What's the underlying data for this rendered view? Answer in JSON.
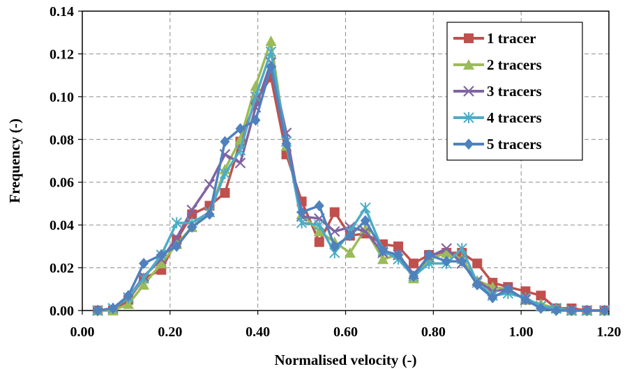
{
  "chart_data": {
    "type": "line",
    "xlabel": "Normalised velocity (-)",
    "ylabel": "Frequency (-)",
    "xlim": [
      0.0,
      1.2
    ],
    "ylim": [
      0.0,
      0.14
    ],
    "x_ticks": [
      "0.00",
      "0.20",
      "0.40",
      "0.60",
      "0.80",
      "1.00",
      "1.20"
    ],
    "y_ticks": [
      "0.00",
      "0.02",
      "0.04",
      "0.06",
      "0.08",
      "0.10",
      "0.12",
      "0.14"
    ],
    "grid": true,
    "legend_position": "top-right",
    "series": [
      {
        "name": "1 tracer",
        "color": "#c0504d",
        "marker": "square",
        "x": [
          0.035,
          0.07,
          0.105,
          0.14,
          0.18,
          0.215,
          0.25,
          0.29,
          0.325,
          0.36,
          0.395,
          0.43,
          0.465,
          0.5,
          0.54,
          0.575,
          0.61,
          0.645,
          0.685,
          0.72,
          0.755,
          0.79,
          0.83,
          0.865,
          0.9,
          0.935,
          0.97,
          1.01,
          1.045,
          1.08,
          1.115,
          1.15,
          1.19
        ],
        "y": [
          0.0,
          0.0,
          0.005,
          0.015,
          0.019,
          0.033,
          0.045,
          0.049,
          0.055,
          0.079,
          0.098,
          0.109,
          0.073,
          0.051,
          0.032,
          0.046,
          0.035,
          0.036,
          0.031,
          0.03,
          0.022,
          0.026,
          0.027,
          0.027,
          0.022,
          0.013,
          0.011,
          0.009,
          0.007,
          0.001,
          0.001,
          0.0,
          0.0
        ]
      },
      {
        "name": "2 tracers",
        "color": "#9bbb59",
        "marker": "triangle",
        "x": [
          0.035,
          0.07,
          0.105,
          0.14,
          0.18,
          0.215,
          0.25,
          0.29,
          0.325,
          0.36,
          0.395,
          0.43,
          0.465,
          0.5,
          0.54,
          0.575,
          0.61,
          0.645,
          0.685,
          0.72,
          0.755,
          0.79,
          0.83,
          0.865,
          0.9,
          0.935,
          0.97,
          1.01,
          1.045,
          1.08,
          1.115,
          1.15,
          1.19
        ],
        "y": [
          0.0,
          0.0,
          0.003,
          0.012,
          0.022,
          0.031,
          0.039,
          0.046,
          0.066,
          0.08,
          0.105,
          0.126,
          0.077,
          0.045,
          0.037,
          0.032,
          0.027,
          0.038,
          0.024,
          0.026,
          0.015,
          0.024,
          0.027,
          0.024,
          0.014,
          0.011,
          0.01,
          0.005,
          0.003,
          0.001,
          0.0,
          0.0,
          0.0
        ]
      },
      {
        "name": "3 tracers",
        "color": "#8064a2",
        "marker": "cross",
        "x": [
          0.035,
          0.07,
          0.105,
          0.14,
          0.18,
          0.215,
          0.25,
          0.29,
          0.325,
          0.36,
          0.395,
          0.43,
          0.465,
          0.5,
          0.54,
          0.575,
          0.61,
          0.645,
          0.685,
          0.72,
          0.755,
          0.79,
          0.83,
          0.865,
          0.9,
          0.935,
          0.97,
          1.01,
          1.045,
          1.08,
          1.115,
          1.15,
          1.19
        ],
        "y": [
          0.0,
          0.001,
          0.006,
          0.016,
          0.024,
          0.034,
          0.047,
          0.059,
          0.073,
          0.069,
          0.095,
          0.116,
          0.083,
          0.044,
          0.043,
          0.037,
          0.039,
          0.037,
          0.027,
          0.026,
          0.017,
          0.025,
          0.029,
          0.022,
          0.014,
          0.009,
          0.01,
          0.005,
          0.002,
          0.001,
          0.0,
          0.0,
          0.0
        ]
      },
      {
        "name": "4 tracers",
        "color": "#4bacc6",
        "marker": "star",
        "x": [
          0.035,
          0.07,
          0.105,
          0.14,
          0.18,
          0.215,
          0.25,
          0.29,
          0.325,
          0.36,
          0.395,
          0.43,
          0.465,
          0.5,
          0.54,
          0.575,
          0.61,
          0.645,
          0.685,
          0.72,
          0.755,
          0.79,
          0.83,
          0.865,
          0.9,
          0.935,
          0.97,
          1.01,
          1.045,
          1.08,
          1.115,
          1.15,
          1.19
        ],
        "y": [
          0.0,
          0.001,
          0.006,
          0.015,
          0.026,
          0.041,
          0.041,
          0.046,
          0.064,
          0.075,
          0.1,
          0.121,
          0.079,
          0.041,
          0.04,
          0.027,
          0.037,
          0.048,
          0.028,
          0.024,
          0.016,
          0.022,
          0.022,
          0.029,
          0.013,
          0.007,
          0.008,
          0.006,
          0.002,
          0.001,
          0.0,
          0.0,
          0.0
        ]
      },
      {
        "name": "5 tracers",
        "color": "#4f81bd",
        "marker": "diamond",
        "x": [
          0.035,
          0.07,
          0.105,
          0.14,
          0.18,
          0.215,
          0.25,
          0.29,
          0.325,
          0.36,
          0.395,
          0.43,
          0.465,
          0.5,
          0.54,
          0.575,
          0.61,
          0.645,
          0.685,
          0.72,
          0.755,
          0.79,
          0.83,
          0.865,
          0.9,
          0.935,
          0.97,
          1.01,
          1.045,
          1.08,
          1.115,
          1.15,
          1.19
        ],
        "y": [
          0.0,
          0.001,
          0.007,
          0.022,
          0.026,
          0.03,
          0.039,
          0.045,
          0.079,
          0.085,
          0.089,
          0.114,
          0.078,
          0.046,
          0.049,
          0.03,
          0.035,
          0.042,
          0.028,
          0.026,
          0.016,
          0.026,
          0.023,
          0.023,
          0.012,
          0.006,
          0.01,
          0.005,
          0.001,
          0.0,
          0.0,
          0.0,
          0.0
        ]
      }
    ]
  }
}
